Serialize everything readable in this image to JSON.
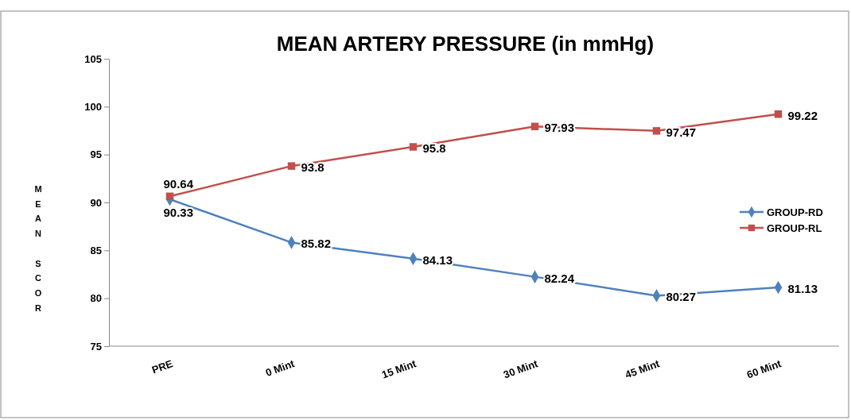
{
  "chart_data": {
    "type": "line",
    "title": "MEAN ARTERY PRESSURE (in mmHg)",
    "ylabel": "MEAN SCOR",
    "categories": [
      "PRE",
      "0 Mint",
      "15 Mint",
      "30 Mint",
      "45 Mint",
      "60 Mint"
    ],
    "series": [
      {
        "name": "GROUP-RD",
        "color": "#4f81bd",
        "marker": "diamond",
        "values": [
          90.33,
          85.82,
          84.13,
          82.24,
          80.27,
          81.13
        ]
      },
      {
        "name": "GROUP-RL",
        "color": "#c0504d",
        "marker": "square",
        "values": [
          90.64,
          93.8,
          95.8,
          97.93,
          97.47,
          99.22
        ]
      }
    ],
    "ylim": [
      75,
      105
    ],
    "yticks": [
      75,
      80,
      85,
      90,
      95,
      100,
      105
    ],
    "grid": false,
    "legend": "right",
    "data_labels": true
  }
}
